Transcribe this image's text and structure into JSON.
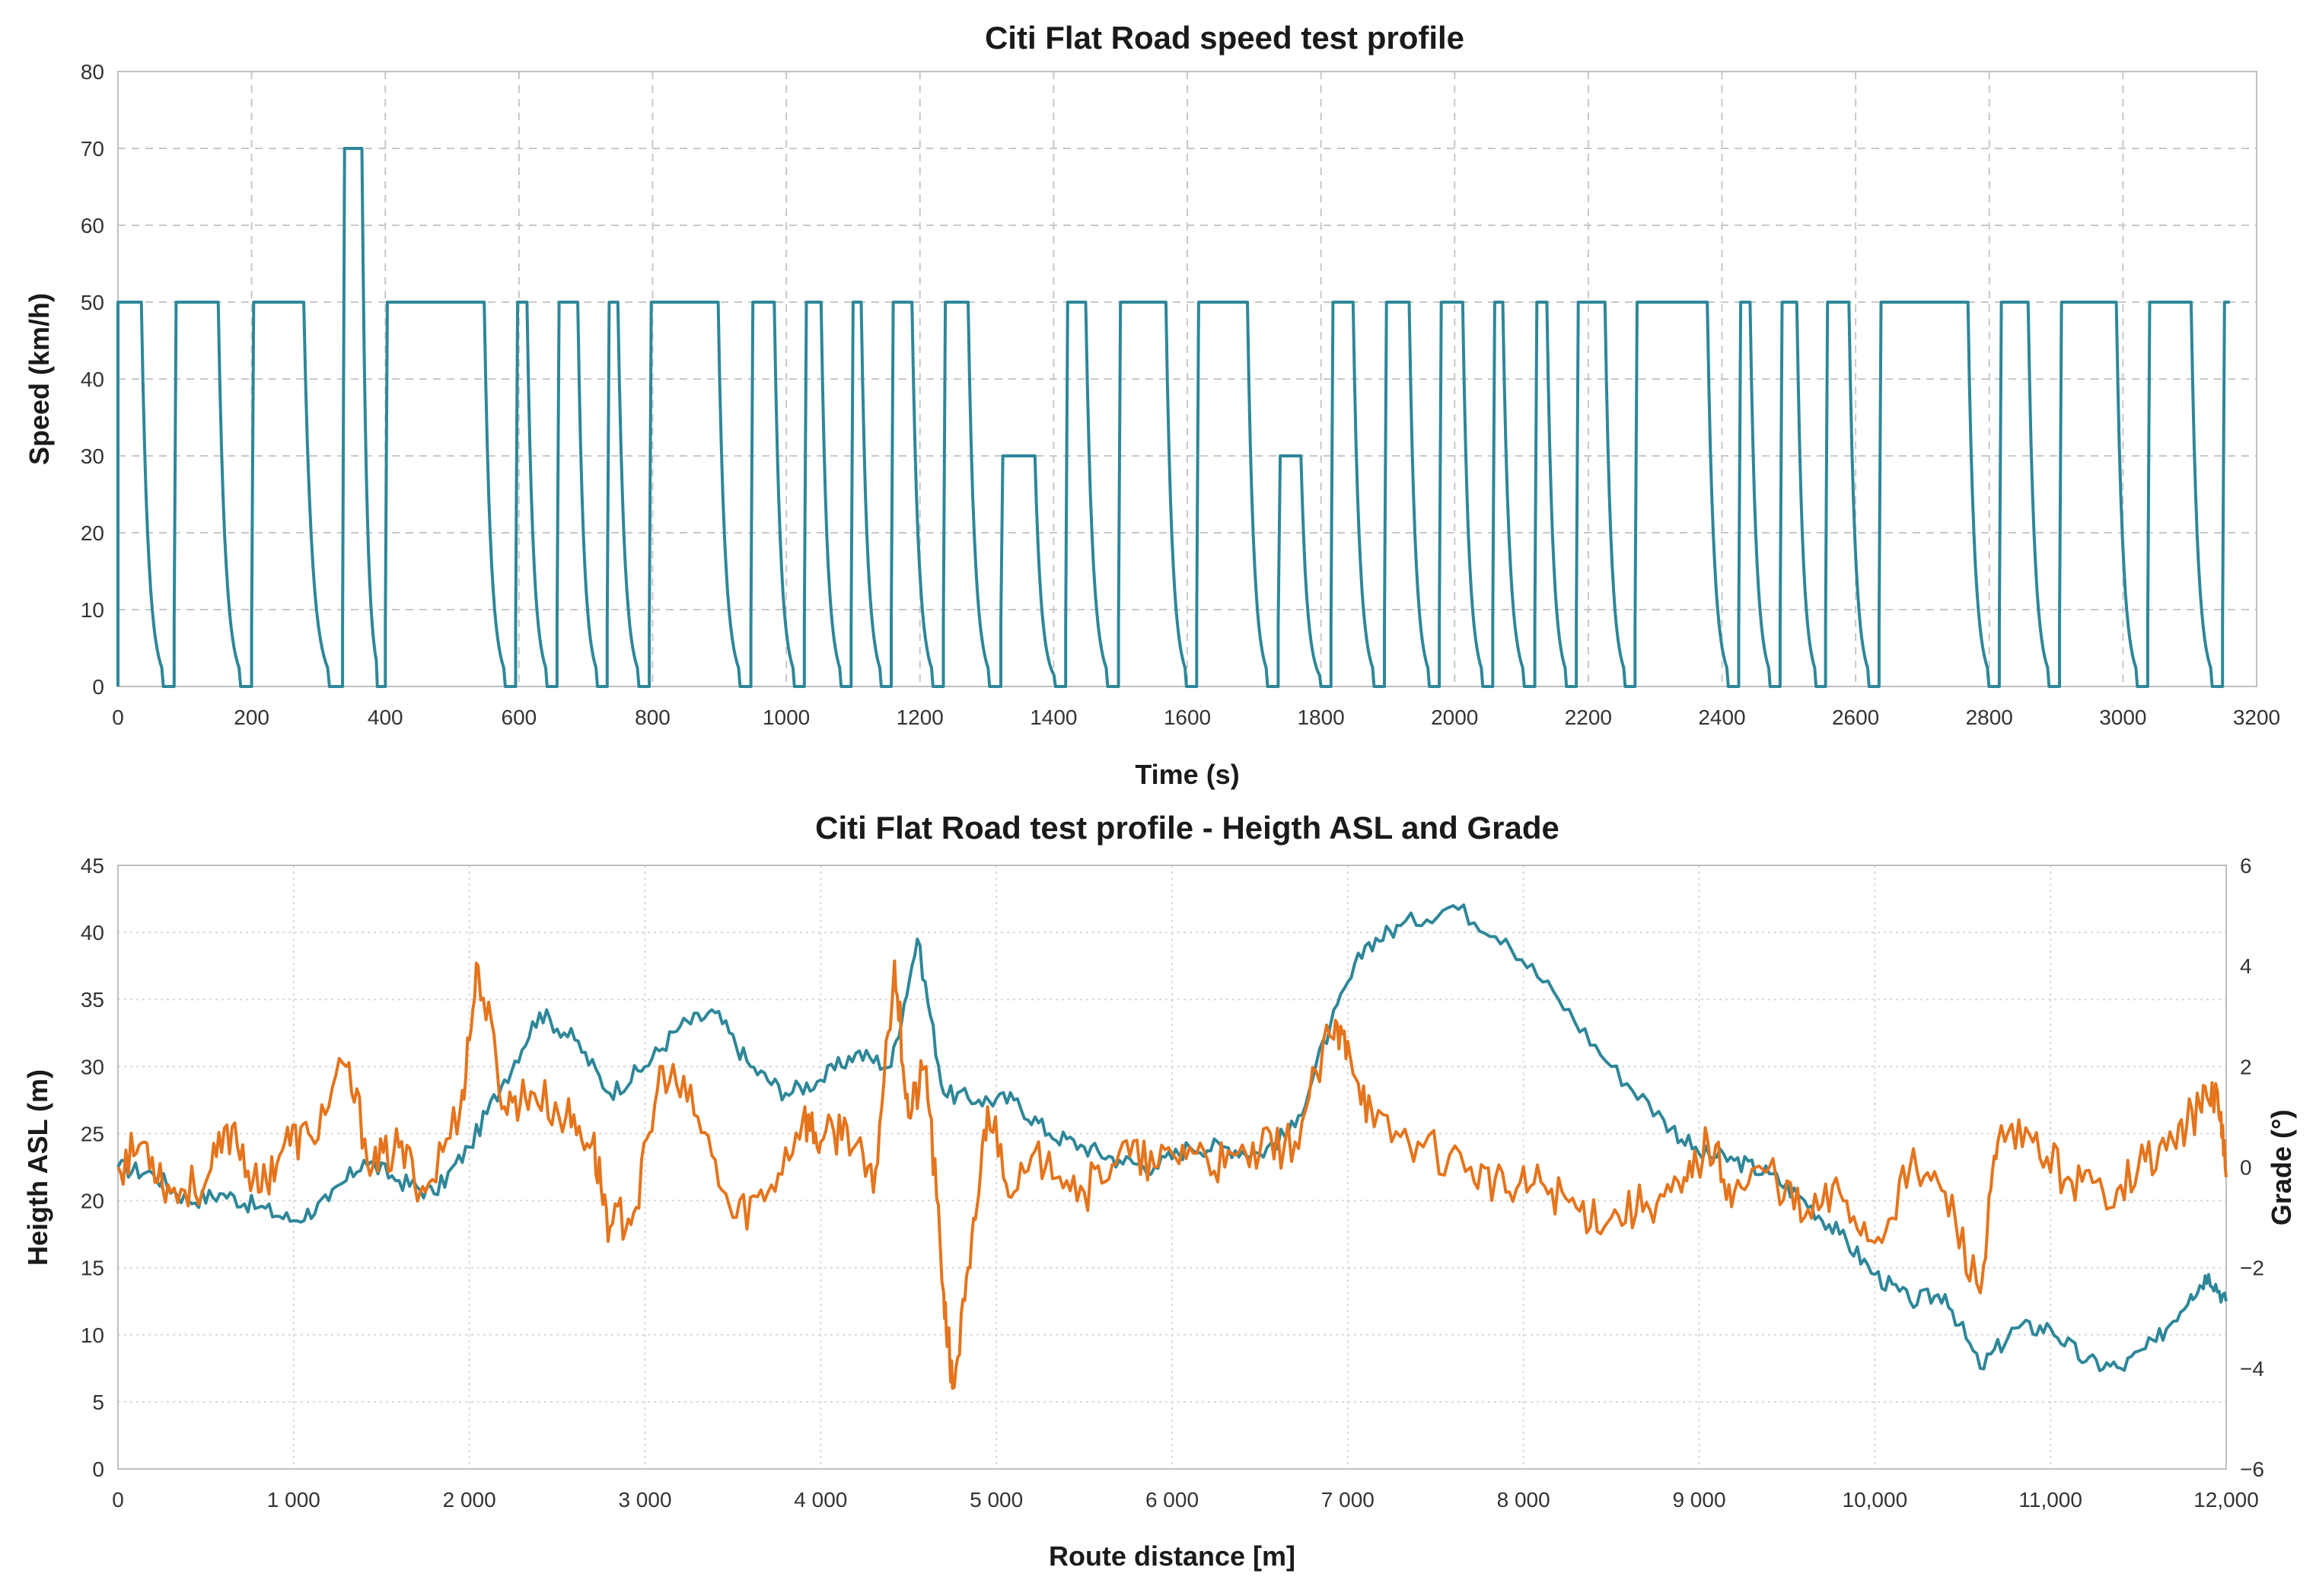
{
  "colors": {
    "teal": "#2e8799",
    "orange": "#e5741c"
  },
  "chart_data": [
    {
      "type": "line",
      "title": "Citi Flat Road speed test profile",
      "xlabel": "Time (s)",
      "ylabel": "Speed (km/h)",
      "xlim": [
        0,
        3200
      ],
      "ylim": [
        0,
        80
      ],
      "x_ticks": [
        "0",
        "200",
        "400",
        "600",
        "800",
        "1000",
        "1200",
        "1400",
        "1600",
        "1800",
        "2000",
        "2200",
        "2400",
        "2600",
        "2800",
        "3000",
        "3200"
      ],
      "y_ticks": [
        "0",
        "10",
        "20",
        "30",
        "40",
        "50",
        "60",
        "70",
        "80"
      ],
      "grid": true,
      "series": [
        {
          "color": "#2e8799",
          "segments": [
            {
              "top": 50,
              "start": 0,
              "end": 35,
              "stop_end": 82
            },
            {
              "top": 50,
              "start": 84,
              "end": 150,
              "stop_end": 198
            },
            {
              "top": 50,
              "start": 200,
              "end": 278,
              "stop_end": 333
            },
            {
              "top": 70,
              "start": 336,
              "end": 365,
              "stop_end": 398
            },
            {
              "top": 50,
              "start": 400,
              "end": 548,
              "stop_end": 593
            },
            {
              "top": 50,
              "start": 595,
              "end": 612,
              "stop_end": 655
            },
            {
              "top": 50,
              "start": 657,
              "end": 688,
              "stop_end": 730
            },
            {
              "top": 50,
              "start": 732,
              "end": 748,
              "stop_end": 793
            },
            {
              "top": 50,
              "start": 795,
              "end": 898,
              "stop_end": 945
            },
            {
              "top": 50,
              "start": 947,
              "end": 982,
              "stop_end": 1025
            },
            {
              "top": 50,
              "start": 1027,
              "end": 1052,
              "stop_end": 1095
            },
            {
              "top": 50,
              "start": 1097,
              "end": 1112,
              "stop_end": 1155
            },
            {
              "top": 50,
              "start": 1157,
              "end": 1188,
              "stop_end": 1233
            },
            {
              "top": 50,
              "start": 1235,
              "end": 1272,
              "stop_end": 1318
            },
            {
              "top": 30,
              "start": 1321,
              "end": 1372,
              "stop_end": 1416
            },
            {
              "top": 50,
              "start": 1418,
              "end": 1448,
              "stop_end": 1495
            },
            {
              "top": 50,
              "start": 1497,
              "end": 1568,
              "stop_end": 1612
            },
            {
              "top": 50,
              "start": 1614,
              "end": 1690,
              "stop_end": 1733
            },
            {
              "top": 30,
              "start": 1736,
              "end": 1770,
              "stop_end": 1813
            },
            {
              "top": 50,
              "start": 1815,
              "end": 1848,
              "stop_end": 1893
            },
            {
              "top": 50,
              "start": 1895,
              "end": 1932,
              "stop_end": 1975
            },
            {
              "top": 50,
              "start": 1977,
              "end": 2012,
              "stop_end": 2055
            },
            {
              "top": 50,
              "start": 2057,
              "end": 2072,
              "stop_end": 2118
            },
            {
              "top": 50,
              "start": 2120,
              "end": 2138,
              "stop_end": 2180
            },
            {
              "top": 50,
              "start": 2182,
              "end": 2225,
              "stop_end": 2268
            },
            {
              "top": 50,
              "start": 2270,
              "end": 2378,
              "stop_end": 2423
            },
            {
              "top": 50,
              "start": 2425,
              "end": 2442,
              "stop_end": 2485
            },
            {
              "top": 50,
              "start": 2487,
              "end": 2512,
              "stop_end": 2553
            },
            {
              "top": 50,
              "start": 2555,
              "end": 2590,
              "stop_end": 2633
            },
            {
              "top": 50,
              "start": 2635,
              "end": 2768,
              "stop_end": 2813
            },
            {
              "top": 50,
              "start": 2815,
              "end": 2858,
              "stop_end": 2903
            },
            {
              "top": 50,
              "start": 2905,
              "end": 2990,
              "stop_end": 3035
            },
            {
              "top": 50,
              "start": 3037,
              "end": 3102,
              "stop_end": 3147
            },
            {
              "top": 50,
              "start": 3149,
              "end": 3160,
              "stop_end": 3160
            }
          ]
        }
      ]
    },
    {
      "type": "line",
      "title": "Citi Flat Road test profile - Heigth ASL and Grade",
      "xlabel": "Route distance [m]",
      "ylabel": "Heigth ASL  (m)",
      "y2label": "Grade (°)",
      "xlim": [
        0,
        12000
      ],
      "ylim": [
        0,
        45
      ],
      "y2lim": [
        -6,
        6
      ],
      "x_ticks": [
        "0",
        "1 000",
        "2 000",
        "3 000",
        "4 000",
        "5 000",
        "6 000",
        "7 000",
        "8 000",
        "9 000",
        "10,000",
        "11,000",
        "12,000"
      ],
      "y_ticks": [
        "0",
        "5",
        "10",
        "15",
        "20",
        "25",
        "30",
        "35",
        "40",
        "45"
      ],
      "y2_ticks": [
        "−6",
        "−4",
        "−2",
        "0",
        "2",
        "4",
        "6"
      ],
      "grid": true,
      "series": [
        {
          "color": "#2e8799",
          "axis": "left",
          "x": [
            0,
            200,
            400,
            600,
            800,
            1000,
            1200,
            1400,
            1600,
            1800,
            2000,
            2200,
            2400,
            2600,
            2800,
            3000,
            3200,
            3400,
            3600,
            3800,
            4000,
            4200,
            4400,
            4550,
            4700,
            4900,
            5100,
            5300,
            5500,
            5700,
            5900,
            6100,
            6300,
            6500,
            6700,
            6900,
            7100,
            7300,
            7600,
            7900,
            8200,
            8500,
            8800,
            9000,
            9200,
            9400,
            9600,
            9800,
            10000,
            10200,
            10400,
            10600,
            10800,
            11000,
            11200,
            11400,
            11600,
            11800,
            11900,
            12000
          ],
          "y": [
            22.5,
            22,
            20,
            20.5,
            19.5,
            18.5,
            20,
            23,
            21.5,
            20.5,
            24,
            29,
            34,
            32,
            28,
            30,
            33,
            34,
            30,
            28,
            29,
            31,
            30,
            39.5,
            28,
            27.5,
            27.5,
            25,
            24,
            23,
            22.5,
            24,
            24,
            23.5,
            25.5,
            33,
            39,
            40.5,
            42,
            39.5,
            35,
            30,
            26,
            23.5,
            23,
            22,
            20,
            17.5,
            14.5,
            12.5,
            13,
            7.5,
            10.5,
            10.5,
            8,
            7.5,
            9.5,
            13,
            14.5,
            12.5
          ]
        },
        {
          "color": "#e5741c",
          "axis": "right",
          "x": [
            0,
            150,
            300,
            500,
            650,
            800,
            950,
            1100,
            1300,
            1450,
            1600,
            1750,
            1950,
            2050,
            2200,
            2350,
            2550,
            2700,
            2800,
            2950,
            3100,
            3300,
            3500,
            3700,
            3900,
            4000,
            4150,
            4300,
            4420,
            4500,
            4600,
            4700,
            4750,
            4850,
            4950,
            5100,
            5300,
            5500,
            5700,
            5900,
            6100,
            6300,
            6500,
            6700,
            6900,
            7000,
            7150,
            7400,
            7700,
            7900,
            8100,
            8300,
            8500,
            8700,
            8900,
            9050,
            9200,
            9400,
            9600,
            9800,
            10000,
            10200,
            10400,
            10600,
            10700,
            10900,
            11100,
            11300,
            11500,
            11700,
            11850,
            11950,
            12000
          ],
          "y": [
            0,
            0.5,
            -0.5,
            -0.3,
            0.8,
            -0.5,
            0.5,
            0.6,
            2,
            0,
            0.4,
            -0.5,
            1.2,
            4,
            1.2,
            1.5,
            1,
            0.5,
            -1.2,
            -0.8,
            2,
            1,
            -1,
            -0.5,
            1,
            0.5,
            0.8,
            -0.5,
            4.1,
            1,
            2,
            -2.5,
            -4.4,
            -2,
            1.2,
            -0.5,
            0.3,
            -0.5,
            0.3,
            0,
            0.4,
            0,
            0.3,
            0.5,
            2.6,
            2.5,
            0.8,
            0.5,
            0,
            -0.5,
            -0.3,
            -0.8,
            -1,
            -0.7,
            -0.5,
            0.5,
            -0.5,
            0,
            -1,
            -0.5,
            -1.5,
            0,
            -0.5,
            -2.5,
            0.5,
            0.5,
            -0.2,
            -0.5,
            0,
            0.5,
            1.2,
            1.5,
            -0.2
          ]
        }
      ]
    }
  ]
}
